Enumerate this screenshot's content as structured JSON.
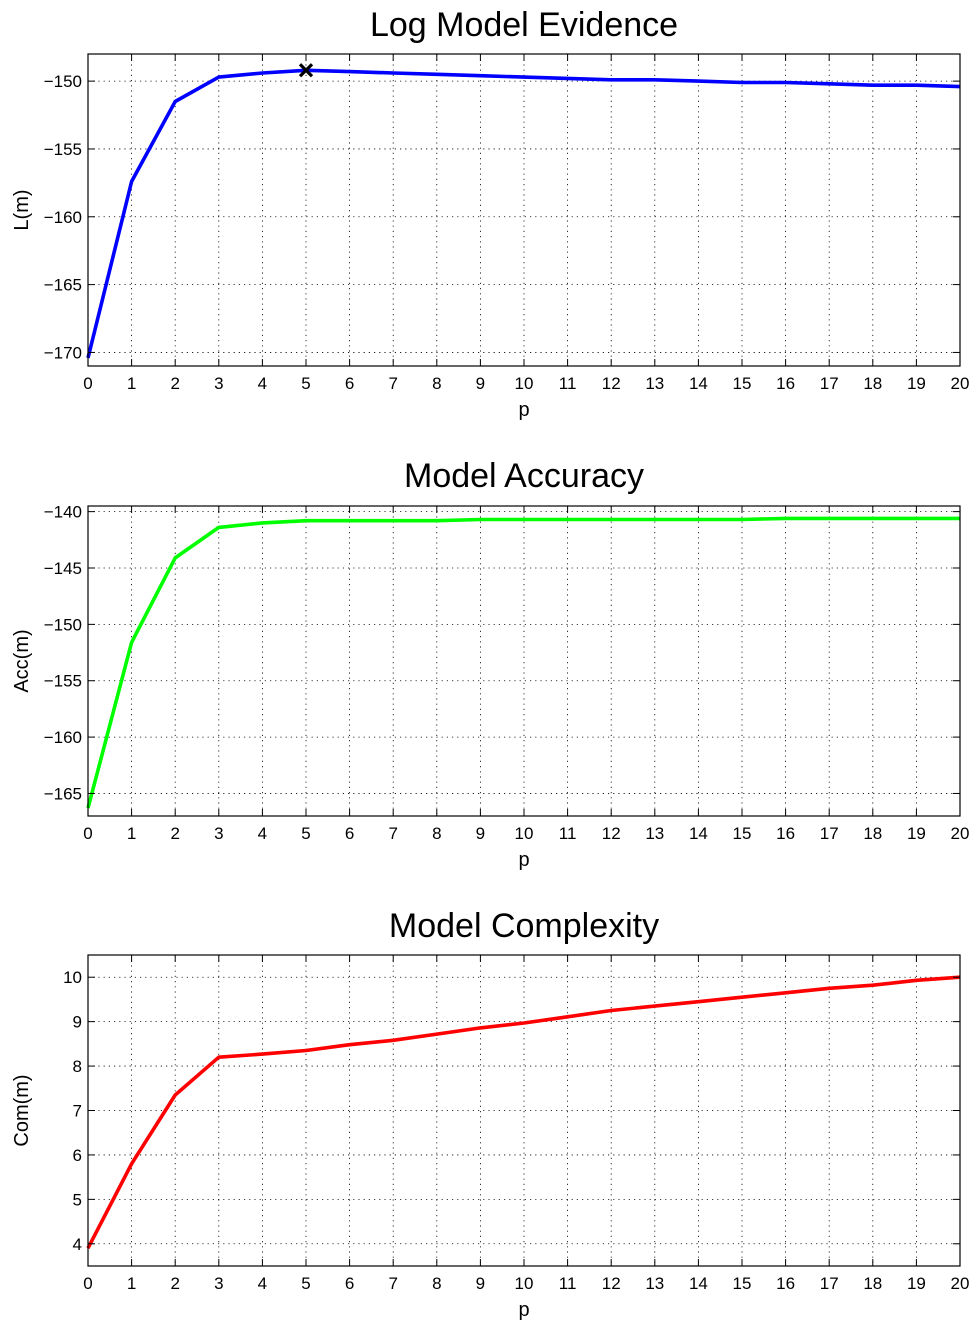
{
  "chart_data": [
    {
      "type": "line",
      "title": "Log Model Evidence",
      "xlabel": "p",
      "ylabel": "L(m)",
      "xlim": [
        0,
        20
      ],
      "ylim": [
        -171,
        -148
      ],
      "xticks": [
        0,
        1,
        2,
        3,
        4,
        5,
        6,
        7,
        8,
        9,
        10,
        11,
        12,
        13,
        14,
        15,
        16,
        17,
        18,
        19,
        20
      ],
      "yticks": [
        -170,
        -165,
        -160,
        -155,
        -150
      ],
      "grid": true,
      "color": "#0000ff",
      "series": [
        {
          "x": [
            0,
            1,
            2,
            3,
            4,
            5,
            6,
            7,
            8,
            9,
            10,
            11,
            12,
            13,
            14,
            15,
            16,
            17,
            18,
            19,
            20
          ],
          "values": [
            -170.4,
            -157.4,
            -151.5,
            -149.7,
            -149.4,
            -149.2,
            -149.3,
            -149.4,
            -149.5,
            -149.6,
            -149.7,
            -149.8,
            -149.9,
            -149.9,
            -150.0,
            -150.1,
            -150.1,
            -150.2,
            -150.3,
            -150.3,
            -150.4
          ]
        }
      ],
      "marker": {
        "x": 5,
        "y": -149.2,
        "symbol": "x",
        "color": "#000000"
      }
    },
    {
      "type": "line",
      "title": "Model Accuracy",
      "xlabel": "p",
      "ylabel": "Acc(m)",
      "xlim": [
        0,
        20
      ],
      "ylim": [
        -167,
        -139.5
      ],
      "xticks": [
        0,
        1,
        2,
        3,
        4,
        5,
        6,
        7,
        8,
        9,
        10,
        11,
        12,
        13,
        14,
        15,
        16,
        17,
        18,
        19,
        20
      ],
      "yticks": [
        -165,
        -160,
        -155,
        -150,
        -145,
        -140
      ],
      "grid": true,
      "color": "#00ff00",
      "series": [
        {
          "x": [
            0,
            1,
            2,
            3,
            4,
            5,
            6,
            7,
            8,
            9,
            10,
            11,
            12,
            13,
            14,
            15,
            16,
            17,
            18,
            19,
            20
          ],
          "values": [
            -166.3,
            -151.6,
            -144.1,
            -141.4,
            -141.0,
            -140.8,
            -140.8,
            -140.8,
            -140.8,
            -140.7,
            -140.7,
            -140.7,
            -140.7,
            -140.7,
            -140.7,
            -140.7,
            -140.6,
            -140.6,
            -140.6,
            -140.6,
            -140.6
          ]
        }
      ]
    },
    {
      "type": "line",
      "title": "Model Complexity",
      "xlabel": "p",
      "ylabel": "Com(m)",
      "xlim": [
        0,
        20
      ],
      "ylim": [
        3.5,
        10.5
      ],
      "xticks": [
        0,
        1,
        2,
        3,
        4,
        5,
        6,
        7,
        8,
        9,
        10,
        11,
        12,
        13,
        14,
        15,
        16,
        17,
        18,
        19,
        20
      ],
      "yticks": [
        4,
        5,
        6,
        7,
        8,
        9,
        10
      ],
      "grid": true,
      "color": "#ff0000",
      "series": [
        {
          "x": [
            0,
            1,
            2,
            3,
            4,
            5,
            6,
            7,
            8,
            9,
            10,
            11,
            12,
            13,
            14,
            15,
            16,
            17,
            18,
            19,
            20
          ],
          "values": [
            3.9,
            5.8,
            7.35,
            8.2,
            8.27,
            8.35,
            8.48,
            8.58,
            8.72,
            8.86,
            8.97,
            9.11,
            9.25,
            9.35,
            9.45,
            9.55,
            9.65,
            9.75,
            9.82,
            9.93,
            10.0
          ]
        }
      ]
    }
  ]
}
